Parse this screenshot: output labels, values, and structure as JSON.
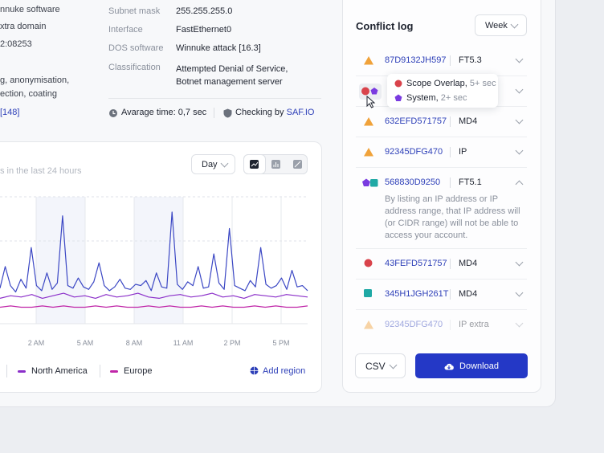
{
  "details": {
    "left_lines": [
      "nnuke software",
      "xtra domain",
      "2:08253",
      "g, anonymisation,",
      "ection, coating",
      "[148]"
    ],
    "fields": [
      {
        "label": "Subnet mask",
        "value": "255.255.255.0"
      },
      {
        "label": "Interface",
        "value": "FastEthernet0"
      },
      {
        "label": "DOS software",
        "value": "Winnuke attack [16.3]"
      },
      {
        "label": "Classification",
        "value": "Attempted Denial of Service,",
        "value2": "Botnet management server"
      }
    ],
    "average_time": "Avarage time: 0,7 sec",
    "checking_by": "Checking by",
    "checking_link": "SAF.IO"
  },
  "chart": {
    "period": "Day",
    "subtitle": "s in the last 24 hours",
    "x_labels": [
      "2 AM",
      "5 AM",
      "8 AM",
      "11 AM",
      "2 PM",
      "5 PM"
    ],
    "ylim": [
      0,
      100
    ],
    "series": [
      {
        "color": "#3b47c4",
        "values": [
          28,
          45,
          30,
          25,
          35,
          28,
          60,
          30,
          26,
          40,
          27,
          32,
          85,
          30,
          28,
          36,
          29,
          27,
          33,
          48,
          30,
          26,
          29,
          35,
          28,
          27,
          31,
          30,
          34,
          26,
          40,
          29,
          28,
          88,
          31,
          27,
          33,
          30,
          45,
          28,
          29,
          55,
          32,
          27,
          75,
          30,
          28,
          26,
          34,
          29,
          60,
          31,
          28,
          30,
          36,
          27,
          42,
          29,
          30,
          26
        ]
      },
      {
        "name": "North America",
        "color": "#8b2fc9",
        "values": [
          20,
          22,
          21,
          23,
          20,
          22,
          24,
          21,
          22,
          20,
          23,
          21,
          22,
          24,
          21,
          20,
          22,
          23,
          21,
          22,
          24,
          21,
          22,
          20,
          23,
          22,
          21,
          23,
          22,
          21
        ]
      },
      {
        "name": "Europe",
        "color": "#c026a8",
        "values": [
          13,
          14,
          13,
          13,
          14,
          13,
          14,
          13,
          13,
          14,
          13,
          14,
          13,
          13,
          14,
          13,
          14,
          13,
          13,
          14,
          13,
          14,
          13,
          13,
          14,
          13,
          14,
          13,
          13,
          14
        ]
      }
    ],
    "add_region": "Add region"
  },
  "conflict_log": {
    "title": "Conflict log",
    "period": "Week",
    "rows": [
      {
        "id": "87D9132JH597",
        "code": "FT5.3"
      },
      {
        "id": "632EFD571757",
        "code": "MD4"
      },
      {
        "id": "92345DFG470",
        "code": "IP"
      },
      {
        "id": "568830D9250",
        "code": "FT5.1",
        "description": "By listing an IP address or IP address range, that IP address will (or CIDR range) will not be able to access your account."
      },
      {
        "id": "43FEFD571757",
        "code": "MD4"
      },
      {
        "id": "345H1JGH261T",
        "code": "MD4"
      },
      {
        "id": "92345DFG470",
        "code": "IP extra"
      }
    ],
    "tooltip": [
      {
        "name": "Scope Overlap,",
        "time": "5+ sec"
      },
      {
        "name": "System,",
        "time": "2+ sec"
      }
    ],
    "format": "CSV",
    "download": "Download"
  }
}
